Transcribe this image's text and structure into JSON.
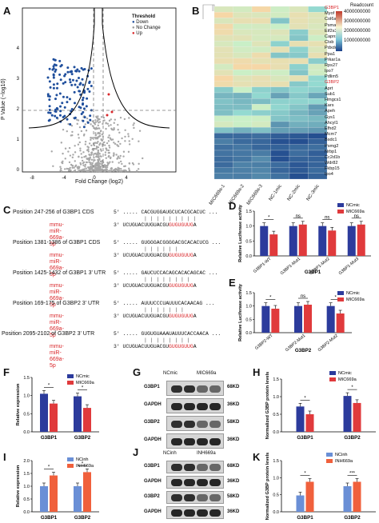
{
  "panels": {
    "A": {
      "letter": "A",
      "ylabel": "P Value (−log10)",
      "xlabel": "Fold Change (log2)",
      "xticks": [
        "-8",
        "-4",
        "0",
        "4"
      ],
      "yticks": [
        "0",
        "1",
        "2",
        "3",
        "4"
      ],
      "legend": {
        "title": "Threshold",
        "items": [
          {
            "label": "Down",
            "color": "#1f4e9c"
          },
          {
            "label": "No Change",
            "color": "#9a9a9a"
          },
          {
            "label": "Up",
            "color": "#d9262a"
          }
        ]
      }
    },
    "B": {
      "letter": "B",
      "legend_title": "Readcount",
      "legend_ticks": [
        "4000000000",
        "3000000000",
        "2000000000",
        "1000000000"
      ],
      "genes": [
        "G3BP1",
        "Myof",
        "Col6a1",
        "Psma1",
        "Eif2s3x",
        "Capns1",
        "Ctsb",
        "Pdxdc1",
        "Ppa1",
        "Prkar1a",
        "Rps27",
        "Ipo7",
        "Pdlim5",
        "G3BP2",
        "Aprt",
        "Sub1",
        "Hmgcs1",
        "Kars",
        "Apeh",
        "Gys1",
        "Ahcyl1",
        "Efhd2",
        "Mcm7",
        "Bsdc1",
        "Psmg2",
        "Nrbp1",
        "Cc2d1b",
        "Wdr82",
        "Fkbp15",
        "Ipo4"
      ],
      "highlight": [
        "G3BP1",
        "G3BP2"
      ],
      "samples": [
        "MIC669a-1",
        "MIC669a-2",
        "MIC669a-3",
        "NC-1mic",
        "NC-2mic",
        "NC-3mic"
      ]
    },
    "C": {
      "letter": "C",
      "blocks": [
        {
          "title": "Position 247-256 of G3BP1 CDS",
          "target": "5' ..... CACGUGGAUGCUCACGCACUC ...",
          "mirna_label": "mmu-miR-669a-5p",
          "mirna": "3' UCUGUACUUGUACGU",
          "seed": "GUGUGUUG",
          "tail": "A",
          "pairs": "| | | | | | | | |"
        },
        {
          "title": "Position 1381-1386 of G3BP1 CDS",
          "target": "5' ..... GUGGGACGGGGACGCACACUCG ...",
          "mirna_label": "mmu-miR-669a-5p",
          "mirna": "3' UCUGUACUUGUACGU",
          "seed": "GUGUGUUG",
          "tail": "A",
          "pairs": "| | | | | |"
        },
        {
          "title": "Position 1425-1432 of G3BP1 3' UTR",
          "target": "5' ..... GAUCUCCACAGCACACAGCAC ...",
          "mirna_label": "mmu-miR-669a-5p",
          "mirna": "3' UCUGUACUUGUACGU",
          "seed": "GUGUGUUG",
          "tail": "A",
          "pairs": "| | | | | | | |"
        },
        {
          "title": "Position 169-175 of G3BP2 3' UTR",
          "target": "5' ..... AUUUCCCUAUUUCACAACAG ...",
          "mirna_label": "mmu-miR-669a-5p",
          "mirna": "3' UCUGUACUUGUACGU",
          "seed": "GUGUGUUG",
          "tail": "A",
          "pairs": "| | | | | | |"
        },
        {
          "title": "Position 2095-2102 of G3BP2 3' UTR",
          "target": "5' ..... GUGUGUAAAUAUUUCACCAACA ...",
          "mirna_label": "mmu-miR-669a-5p",
          "mirna": "3' UCUGUACUUGUACGU",
          "seed": "GUGUGUUG",
          "tail": "A",
          "pairs": "| | | | | | | |"
        }
      ]
    },
    "D": {
      "letter": "D",
      "ylabel": "Relative Luciferase activity",
      "xlabel": "G3BP1",
      "legend": [
        "NCmic",
        "MIC669a"
      ],
      "categories": [
        "G3BP1-WT",
        "G3BP1-Mut1",
        "G3BP1-Mut2",
        "G3BP1-Mut3"
      ],
      "yticks": [
        "0.0",
        "0.5",
        "1.0",
        "1.5"
      ],
      "sig": [
        "*",
        "ns",
        "ns",
        "ns"
      ]
    },
    "E": {
      "letter": "E",
      "ylabel": "Relative Luciferase activity",
      "xlabel": "G3BP2",
      "legend": [
        "NCmic",
        "MIC669a"
      ],
      "categories": [
        "G3BP2-WT",
        "G3BP2-Mut1",
        "G3BP2-Mut2"
      ],
      "yticks": [
        "0.0",
        "0.5",
        "1.0",
        "1.5"
      ],
      "sig": [
        "*",
        "ns",
        "*"
      ]
    },
    "F": {
      "letter": "F",
      "ylabel": "Relative expression",
      "legend": [
        "NCmic",
        "MIC669a"
      ],
      "categories": [
        "G3BP1",
        "G3BP2"
      ],
      "yticks": [
        "0.0",
        "0.5",
        "1.0",
        "1.5"
      ],
      "sig": [
        "*",
        "*"
      ]
    },
    "G": {
      "letter": "G",
      "header": [
        "NCmic",
        "MIC669a"
      ],
      "rows": [
        {
          "name": "G3BP1",
          "size": "68KD"
        },
        {
          "name": "GAPDH",
          "size": "36KD"
        },
        {
          "name": "G3BP2",
          "size": "58KD"
        },
        {
          "name": "GAPDH",
          "size": "36KD"
        }
      ]
    },
    "H": {
      "letter": "H",
      "ylabel": "Normalized G3BP protein levels",
      "legend": [
        "NCmic",
        "MIC669a"
      ],
      "categories": [
        "G3BP1",
        "G3BP2"
      ],
      "yticks": [
        "0.0",
        "0.5",
        "1.0",
        "1.5"
      ],
      "sig": [
        "*",
        "*"
      ]
    },
    "I": {
      "letter": "I",
      "ylabel": "Relative expression",
      "legend": [
        "NCinh",
        "INH669a"
      ],
      "categories": [
        "G3BP1",
        "G3BP2"
      ],
      "yticks": [
        "0.0",
        "0.5",
        "1.0",
        "1.5",
        "2.0"
      ],
      "sig": [
        "*",
        "*"
      ]
    },
    "J": {
      "letter": "J",
      "header": [
        "NCinh",
        "INH669a"
      ],
      "rows": [
        {
          "name": "G3BP1",
          "size": "68KD"
        },
        {
          "name": "GAPDH",
          "size": "36KD"
        },
        {
          "name": "G3BP2",
          "size": "58KD"
        },
        {
          "name": "GAPDH",
          "size": "36KD"
        }
      ]
    },
    "K": {
      "letter": "K",
      "ylabel": "Normalized G3BP protein levels",
      "legend": [
        "NCinh",
        "INH669a"
      ],
      "categories": [
        "G3BP1",
        "G3BP2"
      ],
      "yticks": [
        "0.0",
        "0.5",
        "1.0",
        "1.5"
      ],
      "sig": [
        "*",
        "***"
      ]
    }
  },
  "colors": {
    "blue": "#2c3b9c",
    "red": "#e03a3c",
    "lightblue": "#6a8fd6",
    "orange": "#f0603c"
  },
  "chart_data": [
    {
      "id": "D",
      "type": "bar",
      "categories": [
        "G3BP1-WT",
        "G3BP1-Mut1",
        "G3BP1-Mut2",
        "G3BP1-Mut3"
      ],
      "ylim": [
        0,
        1.5
      ],
      "series": [
        {
          "name": "NCmic",
          "values": [
            1.0,
            1.0,
            1.0,
            1.0
          ]
        },
        {
          "name": "MIC669a",
          "values": [
            0.72,
            1.05,
            0.85,
            1.05
          ]
        }
      ]
    },
    {
      "id": "E",
      "type": "bar",
      "categories": [
        "G3BP2-WT",
        "G3BP2-Mut1",
        "G3BP2-Mut2"
      ],
      "ylim": [
        0,
        1.5
      ],
      "series": [
        {
          "name": "NCmic",
          "values": [
            1.0,
            1.0,
            1.0
          ]
        },
        {
          "name": "MIC669a",
          "values": [
            0.9,
            1.05,
            0.72
          ]
        }
      ]
    },
    {
      "id": "F",
      "type": "bar",
      "categories": [
        "G3BP1",
        "G3BP2"
      ],
      "ylim": [
        0,
        1.5
      ],
      "series": [
        {
          "name": "NCmic",
          "values": [
            1.05,
            0.98
          ]
        },
        {
          "name": "MIC669a",
          "values": [
            0.78,
            0.66
          ]
        }
      ]
    },
    {
      "id": "H",
      "type": "bar",
      "categories": [
        "G3BP1",
        "G3BP2"
      ],
      "ylim": [
        0,
        1.5
      ],
      "series": [
        {
          "name": "NCmic",
          "values": [
            0.72,
            1.02
          ]
        },
        {
          "name": "MIC669a",
          "values": [
            0.5,
            0.82
          ]
        }
      ]
    },
    {
      "id": "I",
      "type": "bar",
      "categories": [
        "G3BP1",
        "G3BP2"
      ],
      "ylim": [
        0,
        2.0
      ],
      "series": [
        {
          "name": "NCinh",
          "values": [
            1.0,
            1.0
          ]
        },
        {
          "name": "INH669a",
          "values": [
            1.42,
            1.55
          ]
        }
      ]
    },
    {
      "id": "K",
      "type": "bar",
      "categories": [
        "G3BP1",
        "G3BP2"
      ],
      "ylim": [
        0,
        1.5
      ],
      "series": [
        {
          "name": "NCinh",
          "values": [
            0.48,
            0.75
          ]
        },
        {
          "name": "INH669a",
          "values": [
            0.88,
            0.88
          ]
        }
      ]
    }
  ]
}
